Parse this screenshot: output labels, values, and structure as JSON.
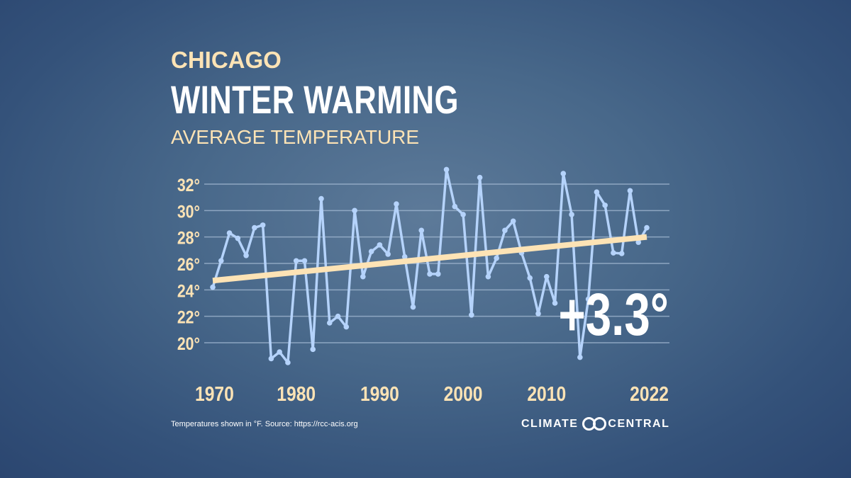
{
  "header": {
    "city": "CHICAGO",
    "title": "WINTER WARMING",
    "subtitle": "AVERAGE TEMPERATURE"
  },
  "chart_data": {
    "type": "line",
    "title": "WINTER WARMING",
    "subtitle": "AVERAGE TEMPERATURE",
    "ylim": [
      18,
      33.5
    ],
    "xlim": [
      1970,
      2022
    ],
    "yticks": [
      20,
      22,
      24,
      26,
      28,
      30,
      32
    ],
    "ytick_labels": [
      "20°",
      "22°",
      "24°",
      "26°",
      "28°",
      "30°",
      "32°"
    ],
    "xtick_labels": [
      "1970",
      "1980",
      "1990",
      "2000",
      "2010",
      "2022"
    ],
    "xticks": [
      1970,
      1980,
      1990,
      2000,
      2010,
      2022
    ],
    "grid": true,
    "x": [
      1970,
      1971,
      1972,
      1973,
      1974,
      1975,
      1976,
      1977,
      1978,
      1979,
      1980,
      1981,
      1982,
      1983,
      1984,
      1985,
      1986,
      1987,
      1988,
      1989,
      1990,
      1991,
      1992,
      1993,
      1994,
      1995,
      1996,
      1997,
      1998,
      1999,
      2000,
      2001,
      2002,
      2003,
      2004,
      2005,
      2006,
      2007,
      2008,
      2009,
      2010,
      2011,
      2012,
      2013,
      2014,
      2015,
      2016,
      2017,
      2018,
      2019,
      2020,
      2021,
      2022
    ],
    "values": [
      24.2,
      26.2,
      28.3,
      27.9,
      26.6,
      28.7,
      28.9,
      18.8,
      19.3,
      18.5,
      26.2,
      26.2,
      19.5,
      30.9,
      21.5,
      22.0,
      21.2,
      30.0,
      25.0,
      26.9,
      27.4,
      26.7,
      30.5,
      26.5,
      22.7,
      28.5,
      25.2,
      25.2,
      33.1,
      30.3,
      29.7,
      22.1,
      32.5,
      25.0,
      26.4,
      28.5,
      29.2,
      26.8,
      24.9,
      22.2,
      25.0,
      23.0,
      32.8,
      29.7,
      18.9,
      23.3,
      31.4,
      30.4,
      26.8,
      26.75,
      31.5,
      27.6,
      28.7
    ],
    "trend": {
      "start": [
        1970,
        24.7
      ],
      "end": [
        2022,
        28.0
      ]
    },
    "annotation": "+3.3°",
    "colors": {
      "series": "#b5d3fb",
      "trend": "#fde3b5",
      "grid": "#9fb6cf",
      "ticks": "#fde3b5"
    }
  },
  "footer": {
    "note": "Temperatures shown in °F. Source: https://rcc-acis.org",
    "logo_left": "CLIMATE",
    "logo_right": "CENTRAL"
  }
}
